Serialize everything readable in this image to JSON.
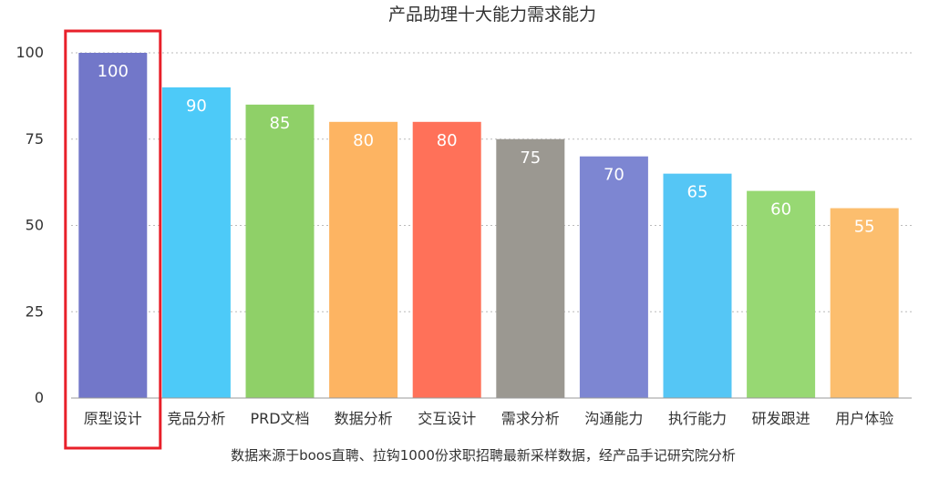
{
  "chart_data": {
    "type": "bar",
    "title": "产品助理十大能力需求能力",
    "categories": [
      "原型设计",
      "竞品分析",
      "PRD文档",
      "数据分析",
      "交互设计",
      "需求分析",
      "沟通能力",
      "执行能力",
      "研发跟进",
      "用户体验"
    ],
    "values": [
      100,
      90,
      85,
      80,
      80,
      75,
      70,
      65,
      60,
      55
    ],
    "colors": [
      "#7277c9",
      "#4dcaf8",
      "#8fd068",
      "#fdb462",
      "#ff7159",
      "#9b9891",
      "#7d86d2",
      "#55c6f5",
      "#97d873",
      "#fcbe6e"
    ],
    "ylim": [
      0,
      100
    ],
    "yticks": [
      0,
      25,
      50,
      75,
      100
    ],
    "grid": true,
    "highlight_index": 0,
    "highlight_color": "#e8202a",
    "source_note": "数据来源于boos直聘、拉钩1000份求职招聘最新采样数据，经产品手记研究院分析"
  }
}
